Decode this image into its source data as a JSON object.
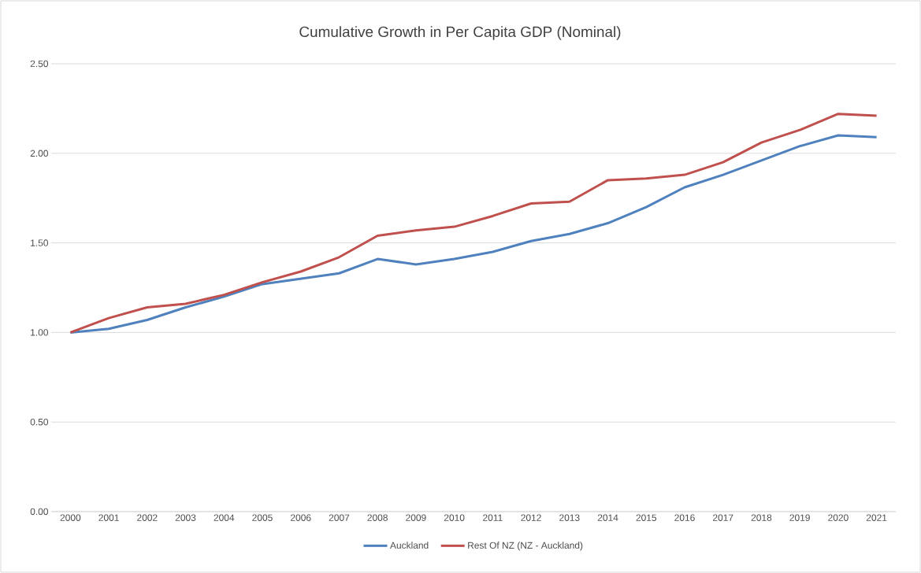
{
  "chart_data": {
    "type": "line",
    "title": "Cumulative Growth in Per Capita GDP (Nominal)",
    "categories": [
      "2000",
      "2001",
      "2002",
      "2003",
      "2004",
      "2005",
      "2006",
      "2007",
      "2008",
      "2009",
      "2010",
      "2011",
      "2012",
      "2013",
      "2014",
      "2015",
      "2016",
      "2017",
      "2018",
      "2019",
      "2020",
      "2021"
    ],
    "series": [
      {
        "name": "Auckland",
        "color": "#4e81bd",
        "values": [
          1.0,
          1.02,
          1.07,
          1.14,
          1.2,
          1.27,
          1.3,
          1.33,
          1.41,
          1.38,
          1.41,
          1.45,
          1.51,
          1.55,
          1.61,
          1.7,
          1.81,
          1.88,
          1.96,
          2.04,
          2.1,
          2.09
        ]
      },
      {
        "name": "Rest Of NZ (NZ - Auckland)",
        "color": "#c0504d",
        "values": [
          1.0,
          1.08,
          1.14,
          1.16,
          1.21,
          1.28,
          1.34,
          1.42,
          1.54,
          1.57,
          1.59,
          1.65,
          1.72,
          1.73,
          1.85,
          1.86,
          1.88,
          1.95,
          2.06,
          2.13,
          2.22,
          2.21
        ]
      }
    ],
    "ylim": [
      0,
      2.5
    ],
    "yticks": [
      {
        "value": 0,
        "label": "0.00"
      },
      {
        "value": 0.5,
        "label": "0.50"
      },
      {
        "value": 1,
        "label": "1.00"
      },
      {
        "value": 1.5,
        "label": "1.50"
      },
      {
        "value": 2,
        "label": "2.00"
      },
      {
        "value": 2.5,
        "label": "2.50"
      }
    ],
    "grid": "y",
    "legend": "bottom",
    "marker": "none",
    "line_style": "solid"
  }
}
